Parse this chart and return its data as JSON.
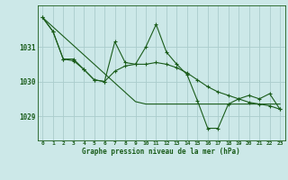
{
  "title": "Graphe pression niveau de la mer (hPa)",
  "background_color": "#cce8e8",
  "grid_color": "#aacccc",
  "line_color": "#1a5c1a",
  "x_values": [
    0,
    1,
    2,
    3,
    4,
    5,
    6,
    7,
    8,
    9,
    10,
    11,
    12,
    13,
    14,
    15,
    16,
    17,
    18,
    19,
    20,
    21,
    22,
    23
  ],
  "series1": [
    1031.85,
    1031.45,
    1030.65,
    1030.65,
    1030.35,
    1030.05,
    1030.0,
    1031.15,
    1030.55,
    1030.5,
    1031.0,
    1031.65,
    1030.85,
    1030.5,
    1030.2,
    1029.45,
    1028.65,
    1028.65,
    1029.35,
    1029.5,
    1029.6,
    1029.5,
    1029.65,
    1029.2
  ],
  "series2": [
    1031.85,
    1031.45,
    1030.65,
    1030.6,
    1030.35,
    1030.05,
    1030.0,
    1030.3,
    1030.45,
    1030.5,
    1030.5,
    1030.55,
    1030.5,
    1030.4,
    1030.25,
    1030.05,
    1029.85,
    1029.7,
    1029.6,
    1029.5,
    1029.4,
    1029.35,
    1029.3,
    1029.2
  ],
  "series3": [
    1031.85,
    1031.58,
    1031.31,
    1031.04,
    1030.77,
    1030.5,
    1030.23,
    1029.96,
    1029.69,
    1029.42,
    1029.35,
    1029.35,
    1029.35,
    1029.35,
    1029.35,
    1029.35,
    1029.35,
    1029.35,
    1029.35,
    1029.35,
    1029.35,
    1029.35,
    1029.35,
    1029.35
  ],
  "ylim": [
    1028.3,
    1032.2
  ],
  "yticks": [
    1029,
    1030,
    1031
  ],
  "xlim": [
    -0.5,
    23.5
  ],
  "xticks": [
    0,
    1,
    2,
    3,
    4,
    5,
    6,
    7,
    8,
    9,
    10,
    11,
    12,
    13,
    14,
    15,
    16,
    17,
    18,
    19,
    20,
    21,
    22,
    23
  ]
}
